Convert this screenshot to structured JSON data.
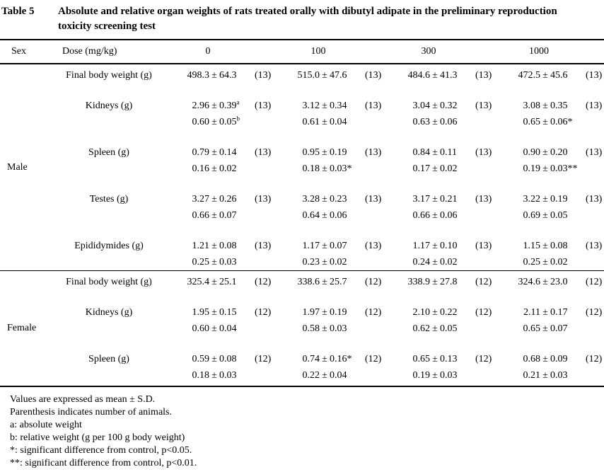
{
  "title": {
    "label": "Table 5",
    "caption": "Absolute and relative organ weights of rats treated orally with dibutyl adipate in the preliminary reproduction toxicity screening test"
  },
  "header": {
    "sex": "Sex",
    "dose_label": "Dose (mg/kg)",
    "doses": [
      "0",
      "100",
      "300",
      "1000"
    ]
  },
  "table": {
    "sections": [
      {
        "sex": "Male",
        "rows": [
          {
            "measure": "Final body weight (g)",
            "lines": [
              [
                {
                  "mean": "498.3",
                  "sd": "64.3",
                  "n": "(13)"
                },
                {
                  "mean": "515.0",
                  "sd": "47.6",
                  "n": "(13)"
                },
                {
                  "mean": "484.6",
                  "sd": "41.3",
                  "n": "(13)"
                },
                {
                  "mean": "472.5",
                  "sd": "45.6",
                  "n": "(13)"
                }
              ]
            ]
          },
          {
            "measure": "Kidneys (g)",
            "lines": [
              [
                {
                  "mean": "2.96",
                  "sd": "0.39",
                  "sup": "a",
                  "n": "(13)"
                },
                {
                  "mean": "3.12",
                  "sd": "0.34",
                  "n": "(13)"
                },
                {
                  "mean": "3.04",
                  "sd": "0.32",
                  "n": "(13)"
                },
                {
                  "mean": "3.08",
                  "sd": "0.35",
                  "n": "(13)"
                }
              ],
              [
                {
                  "mean": "0.60",
                  "sd": "0.05",
                  "sup": "b"
                },
                {
                  "mean": "0.61",
                  "sd": "0.04"
                },
                {
                  "mean": "0.63",
                  "sd": "0.06"
                },
                {
                  "mean": "0.65",
                  "sd": "0.06",
                  "mark": "*"
                }
              ]
            ]
          },
          {
            "measure": "Spleen (g)",
            "lines": [
              [
                {
                  "mean": "0.79",
                  "sd": "0.14",
                  "n": "(13)"
                },
                {
                  "mean": "0.95",
                  "sd": "0.19",
                  "n": "(13)"
                },
                {
                  "mean": "0.84",
                  "sd": "0.11",
                  "n": "(13)"
                },
                {
                  "mean": "0.90",
                  "sd": "0.20",
                  "n": "(13)"
                }
              ],
              [
                {
                  "mean": "0.16",
                  "sd": "0.02"
                },
                {
                  "mean": "0.18",
                  "sd": "0.03",
                  "mark": "*"
                },
                {
                  "mean": "0.17",
                  "sd": "0.02"
                },
                {
                  "mean": "0.19",
                  "sd": "0.03",
                  "mark": "**"
                }
              ]
            ]
          },
          {
            "measure": "Testes (g)",
            "lines": [
              [
                {
                  "mean": "3.27",
                  "sd": "0.26",
                  "n": "(13)"
                },
                {
                  "mean": "3.28",
                  "sd": "0.23",
                  "n": "(13)"
                },
                {
                  "mean": "3.17",
                  "sd": "0.21",
                  "n": "(13)"
                },
                {
                  "mean": "3.22",
                  "sd": "0.19",
                  "n": "(13)"
                }
              ],
              [
                {
                  "mean": "0.66",
                  "sd": "0.07"
                },
                {
                  "mean": "0.64",
                  "sd": "0.06"
                },
                {
                  "mean": "0.66",
                  "sd": "0.06"
                },
                {
                  "mean": "0.69",
                  "sd": "0.05"
                }
              ]
            ]
          },
          {
            "measure": "Epididymides (g)",
            "lines": [
              [
                {
                  "mean": "1.21",
                  "sd": "0.08",
                  "n": "(13)"
                },
                {
                  "mean": "1.17",
                  "sd": "0.07",
                  "n": "(13)"
                },
                {
                  "mean": "1.17",
                  "sd": "0.10",
                  "n": "(13)"
                },
                {
                  "mean": "1.15",
                  "sd": "0.08",
                  "n": "(13)"
                }
              ],
              [
                {
                  "mean": "0.25",
                  "sd": "0.03"
                },
                {
                  "mean": "0.23",
                  "sd": "0.02"
                },
                {
                  "mean": "0.24",
                  "sd": "0.02"
                },
                {
                  "mean": "0.25",
                  "sd": "0.02"
                }
              ]
            ]
          }
        ]
      },
      {
        "sex": "Female",
        "rows": [
          {
            "measure": "Final body weight (g)",
            "lines": [
              [
                {
                  "mean": "325.4",
                  "sd": "25.1",
                  "n": "(12)"
                },
                {
                  "mean": "338.6",
                  "sd": "25.7",
                  "n": "(12)"
                },
                {
                  "mean": "338.9",
                  "sd": "27.8",
                  "n": "(12)"
                },
                {
                  "mean": "324.6",
                  "sd": "23.0",
                  "n": "(12)"
                }
              ]
            ]
          },
          {
            "measure": "Kidneys (g)",
            "lines": [
              [
                {
                  "mean": "1.95",
                  "sd": "0.15",
                  "n": "(12)"
                },
                {
                  "mean": "1.97",
                  "sd": "0.19",
                  "n": "(12)"
                },
                {
                  "mean": "2.10",
                  "sd": "0.22",
                  "n": "(12)"
                },
                {
                  "mean": "2.11",
                  "sd": "0.17",
                  "n": "(12)"
                }
              ],
              [
                {
                  "mean": "0.60",
                  "sd": "0.04"
                },
                {
                  "mean": "0.58",
                  "sd": "0.03"
                },
                {
                  "mean": "0.62",
                  "sd": "0.05"
                },
                {
                  "mean": "0.65",
                  "sd": "0.07"
                }
              ]
            ]
          },
          {
            "measure": "Spleen (g)",
            "lines": [
              [
                {
                  "mean": "0.59",
                  "sd": "0.08",
                  "n": "(12)"
                },
                {
                  "mean": "0.74",
                  "sd": "0.16",
                  "mark": "*",
                  "n": "(12)"
                },
                {
                  "mean": "0.65",
                  "sd": "0.13",
                  "n": "(12)"
                },
                {
                  "mean": "0.68",
                  "sd": "0.09",
                  "n": "(12)"
                }
              ],
              [
                {
                  "mean": "0.18",
                  "sd": "0.03"
                },
                {
                  "mean": "0.22",
                  "sd": "0.04"
                },
                {
                  "mean": "0.19",
                  "sd": "0.03"
                },
                {
                  "mean": "0.21",
                  "sd": "0.03"
                }
              ]
            ]
          }
        ]
      }
    ]
  },
  "footnotes": [
    "Values are expressed as mean ± S.D.",
    "Parenthesis indicates number of animals.",
    "a: absolute weight",
    "b: relative weight (g per 100 g body weight)",
    "*: significant difference from control, p<0.05.",
    "**: significant difference from control, p<0.01."
  ],
  "colors": {
    "ink": "#000000",
    "paper": "#ffffff"
  }
}
